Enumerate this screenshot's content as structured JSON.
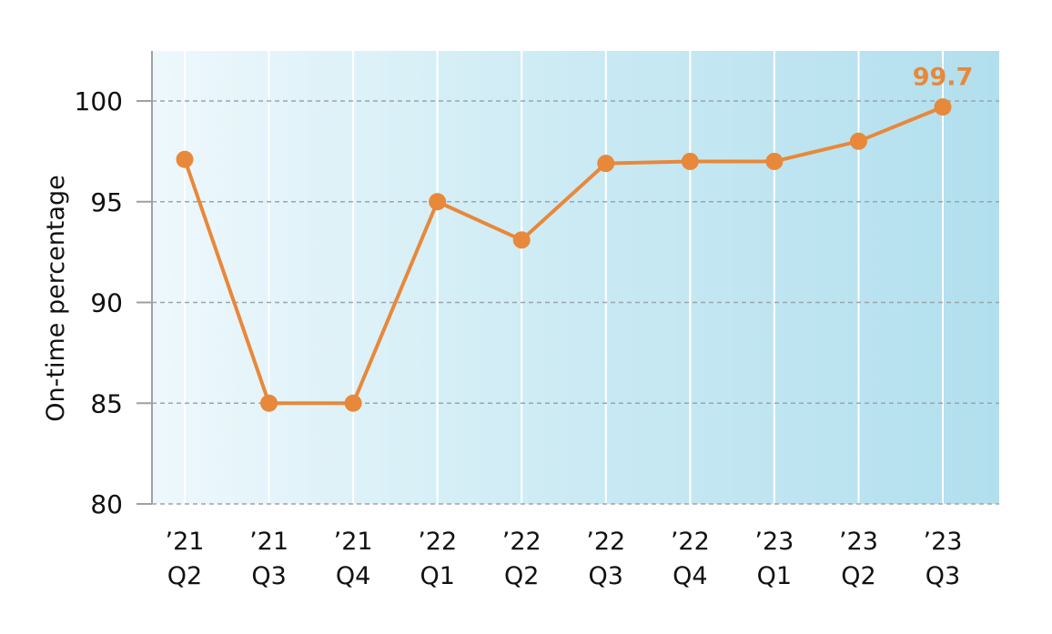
{
  "chart_data": {
    "type": "line",
    "title": "",
    "xlabel": "",
    "ylabel": "On-time percentage",
    "ylim": [
      80,
      102.5
    ],
    "yticks": [
      80,
      85,
      90,
      95,
      100
    ],
    "grid": {
      "horizontal": "dashed",
      "vertical": "solid-white"
    },
    "categories": [
      [
        "’21",
        "Q2"
      ],
      [
        "’21",
        "Q3"
      ],
      [
        "’21",
        "Q4"
      ],
      [
        "’22",
        "Q1"
      ],
      [
        "’22",
        "Q2"
      ],
      [
        "’22",
        "Q3"
      ],
      [
        "’22",
        "Q4"
      ],
      [
        "’23",
        "Q1"
      ],
      [
        "’23",
        "Q2"
      ],
      [
        "’23",
        "Q3"
      ]
    ],
    "values": [
      97.1,
      85.0,
      85.0,
      95.0,
      93.1,
      96.9,
      97.0,
      97.0,
      98.0,
      99.7
    ],
    "annotation": {
      "index": 9,
      "text": "99.7"
    },
    "colors": {
      "line": "#e8883a",
      "bg_start": "#eef8fc",
      "bg_end": "#b2dfee",
      "grid": "#9aa5ad",
      "axis": "#a0a0a0"
    }
  }
}
